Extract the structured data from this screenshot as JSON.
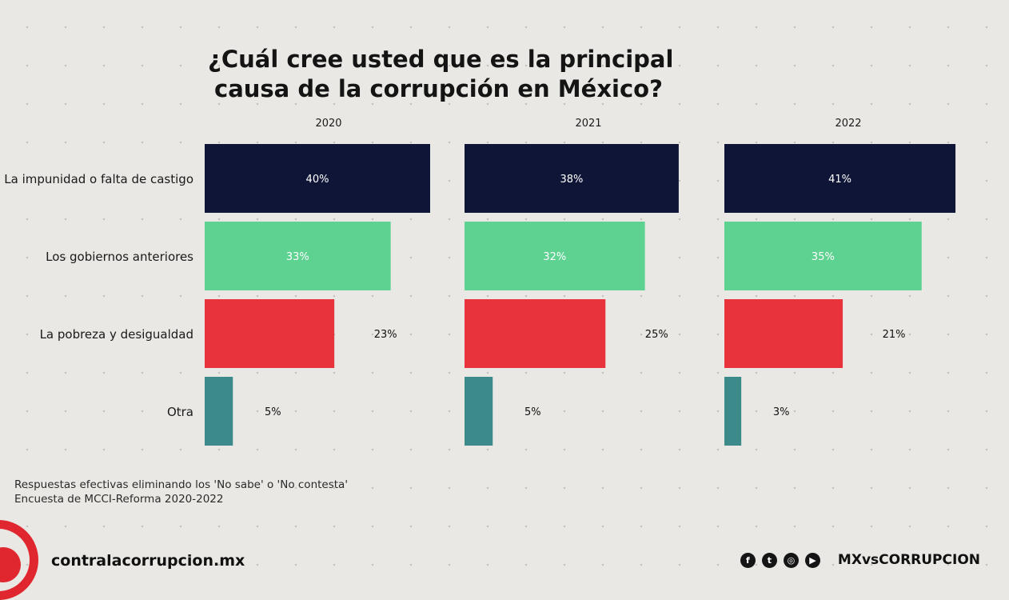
{
  "title_line1": "¿Cuál cree usted que es la principal",
  "title_line2": "causa de la corrupción en México?",
  "chart_data": {
    "type": "bar",
    "orientation": "horizontal",
    "categories": [
      "La impunidad o falta de castigo",
      "Los gobiernos anteriores",
      "La pobreza y desigualdad",
      "Otra"
    ],
    "panels": [
      {
        "year": "2020",
        "values": [
          40,
          33,
          23,
          5
        ],
        "labels": [
          "40%",
          "33%",
          "23%",
          "5%"
        ]
      },
      {
        "year": "2021",
        "values": [
          38,
          32,
          25,
          5
        ],
        "labels": [
          "38%",
          "32%",
          "25%",
          "5%"
        ]
      },
      {
        "year": "2022",
        "values": [
          41,
          35,
          21,
          3
        ],
        "labels": [
          "41%",
          "35%",
          "21%",
          "3%"
        ]
      }
    ],
    "colors": [
      "#0f1537",
      "#5ed290",
      "#e8323c",
      "#3d8a8b"
    ],
    "label_colors": [
      "#ffffff",
      "#ffffff",
      "#111111",
      "#111111"
    ],
    "xlim": [
      0,
      40
    ]
  },
  "notes": {
    "line1": "Respuestas efectivas eliminando los 'No sabe' o 'No contesta'",
    "line2": "Encuesta de MCCI-Reforma 2020-2022"
  },
  "footer": {
    "site": "contralacorrupcion.mx",
    "handle": "MXvsCORRUPCION",
    "social_icons": [
      "facebook-icon",
      "twitter-icon",
      "instagram-icon",
      "youtube-icon"
    ],
    "brand_color": "#e0262e"
  }
}
